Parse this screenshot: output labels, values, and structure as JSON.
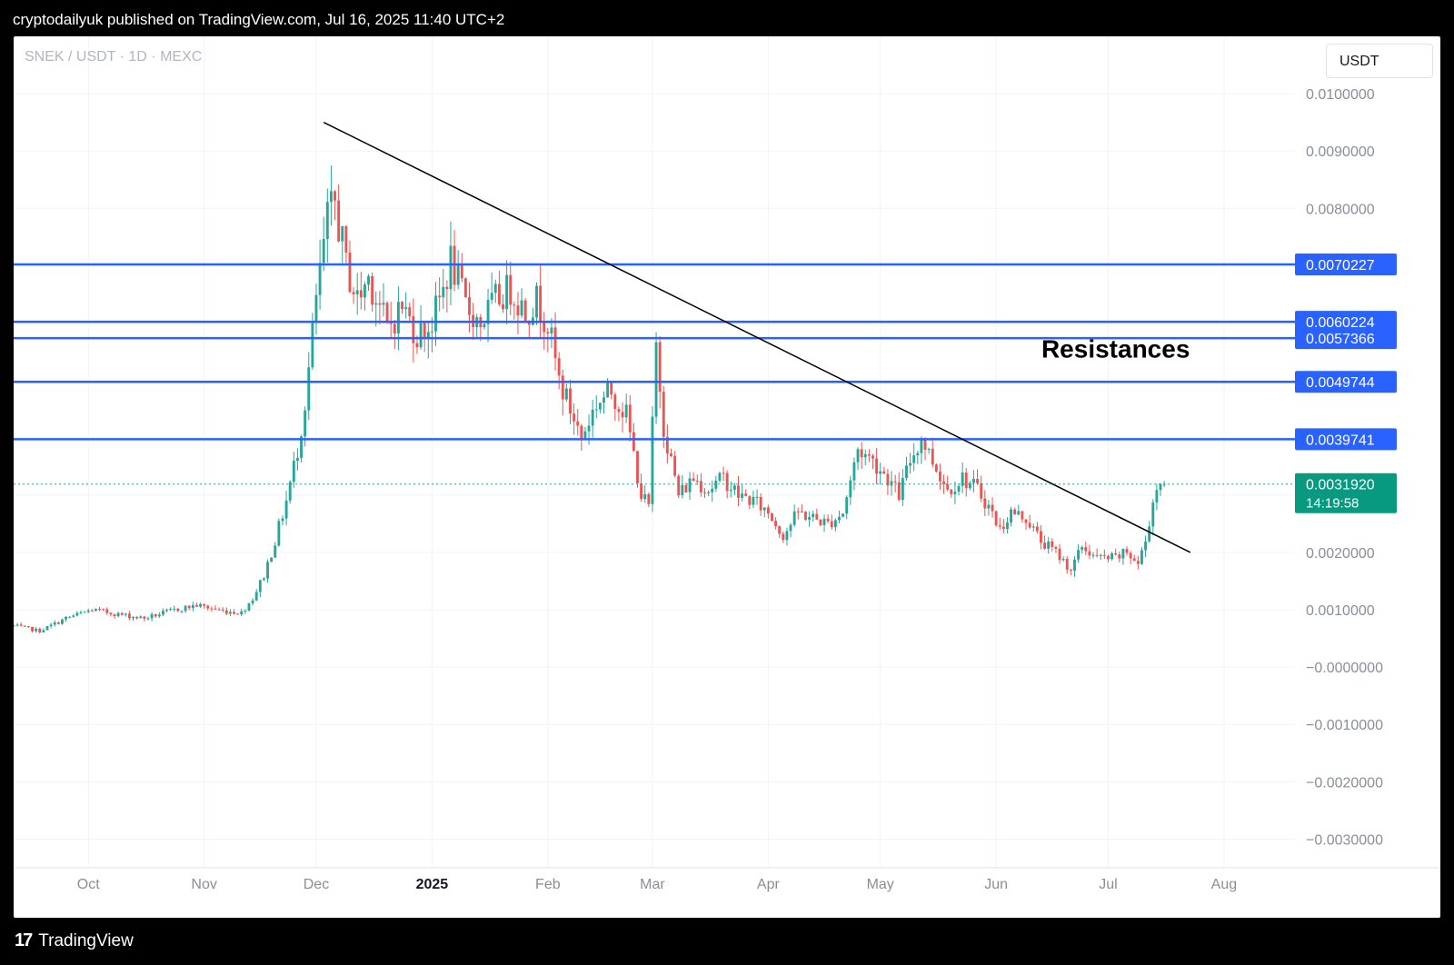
{
  "header": {
    "published_text": "cryptodailyuk published on TradingView.com, Jul 16, 2025 11:40 UTC+2"
  },
  "chart_header": {
    "symbol": "SNEK / USDT · 1D · MEXC",
    "currency": "USDT"
  },
  "footer": {
    "brand": "TradingView",
    "logo_glyph": "17"
  },
  "colors": {
    "up": "#26a69a",
    "down": "#ef5350",
    "level_line": "#2962ff",
    "trendline": "#000000",
    "grid": "#f0f3fa",
    "axis_text": "#b2b5be",
    "last_price_bg": "#089981"
  },
  "chart_data": {
    "type": "candlestick",
    "title": "",
    "xlabel": "",
    "ylabel": "",
    "ylim": [
      -0.0035,
      0.011
    ],
    "y_ticks": [
      {
        "value": 0.01,
        "label": "0.0100000"
      },
      {
        "value": 0.009,
        "label": "0.0090000"
      },
      {
        "value": 0.008,
        "label": "0.0080000"
      },
      {
        "value": 0.002,
        "label": "0.0020000"
      },
      {
        "value": 0.001,
        "label": "0.0010000"
      },
      {
        "value": 0.0,
        "label": "−0.0000000"
      },
      {
        "value": -0.001,
        "label": "−0.0010000"
      },
      {
        "value": -0.002,
        "label": "−0.0020000"
      },
      {
        "value": -0.003,
        "label": "−0.0030000"
      }
    ],
    "x_ticks": [
      {
        "date": "2024-10-01",
        "label": "Oct",
        "bold": false
      },
      {
        "date": "2024-11-01",
        "label": "Nov",
        "bold": false
      },
      {
        "date": "2024-12-01",
        "label": "Dec",
        "bold": false
      },
      {
        "date": "2025-01-01",
        "label": "2025",
        "bold": true
      },
      {
        "date": "2025-02-01",
        "label": "Feb",
        "bold": false
      },
      {
        "date": "2025-03-01",
        "label": "Mar",
        "bold": false
      },
      {
        "date": "2025-04-01",
        "label": "Apr",
        "bold": false
      },
      {
        "date": "2025-05-01",
        "label": "May",
        "bold": false
      },
      {
        "date": "2025-06-01",
        "label": "Jun",
        "bold": false
      },
      {
        "date": "2025-07-01",
        "label": "Jul",
        "bold": false
      },
      {
        "date": "2025-08-01",
        "label": "Aug",
        "bold": false
      }
    ],
    "x_range": [
      "2024-09-11",
      "2025-08-20"
    ],
    "grid": true,
    "price_path": [
      [
        "2024-09-11",
        0.00072
      ],
      [
        "2024-09-18",
        0.00063
      ],
      [
        "2024-09-25",
        0.00085
      ],
      [
        "2024-10-02",
        0.001
      ],
      [
        "2024-10-09",
        0.00092
      ],
      [
        "2024-10-16",
        0.00085
      ],
      [
        "2024-10-23",
        0.00098
      ],
      [
        "2024-10-30",
        0.00108
      ],
      [
        "2024-11-06",
        0.00098
      ],
      [
        "2024-11-11",
        0.00095
      ],
      [
        "2024-11-14",
        0.0012
      ],
      [
        "2024-11-17",
        0.0016
      ],
      [
        "2024-11-20",
        0.0022
      ],
      [
        "2024-11-23",
        0.0029
      ],
      [
        "2024-11-26",
        0.0038
      ],
      [
        "2024-11-28",
        0.0046
      ],
      [
        "2024-12-01",
        0.0064
      ],
      [
        "2024-12-04",
        0.0078
      ],
      [
        "2024-12-06",
        0.0081
      ],
      [
        "2024-12-09",
        0.007
      ],
      [
        "2024-12-12",
        0.0064
      ],
      [
        "2024-12-15",
        0.0068
      ],
      [
        "2024-12-18",
        0.0063
      ],
      [
        "2024-12-20",
        0.0059
      ],
      [
        "2024-12-24",
        0.0063
      ],
      [
        "2024-12-28",
        0.0058
      ],
      [
        "2025-01-01",
        0.006
      ],
      [
        "2025-01-04",
        0.0066
      ],
      [
        "2025-01-06",
        0.0071
      ],
      [
        "2025-01-10",
        0.0063
      ],
      [
        "2025-01-14",
        0.006
      ],
      [
        "2025-01-18",
        0.0064
      ],
      [
        "2025-01-22",
        0.0066
      ],
      [
        "2025-01-26",
        0.0062
      ],
      [
        "2025-01-29",
        0.0064
      ],
      [
        "2025-02-01",
        0.006
      ],
      [
        "2025-02-04",
        0.005
      ],
      [
        "2025-02-07",
        0.0045
      ],
      [
        "2025-02-10",
        0.004
      ],
      [
        "2025-02-14",
        0.0046
      ],
      [
        "2025-02-18",
        0.0048
      ],
      [
        "2025-02-22",
        0.0044
      ],
      [
        "2025-02-26",
        0.003
      ],
      [
        "2025-02-28",
        0.0028
      ],
      [
        "2025-03-02",
        0.0056
      ],
      [
        "2025-03-04",
        0.0042
      ],
      [
        "2025-03-08",
        0.003
      ],
      [
        "2025-03-12",
        0.0033
      ],
      [
        "2025-03-16",
        0.0031
      ],
      [
        "2025-03-20",
        0.0033
      ],
      [
        "2025-03-24",
        0.003
      ],
      [
        "2025-03-28",
        0.0029
      ],
      [
        "2025-04-01",
        0.0027
      ],
      [
        "2025-04-05",
        0.0023
      ],
      [
        "2025-04-09",
        0.0027
      ],
      [
        "2025-04-13",
        0.0026
      ],
      [
        "2025-04-17",
        0.0025
      ],
      [
        "2025-04-21",
        0.0027
      ],
      [
        "2025-04-25",
        0.0038
      ],
      [
        "2025-04-29",
        0.0036
      ],
      [
        "2025-05-03",
        0.0033
      ],
      [
        "2025-05-06",
        0.003
      ],
      [
        "2025-05-09",
        0.0036
      ],
      [
        "2025-05-12",
        0.004
      ],
      [
        "2025-05-15",
        0.0036
      ],
      [
        "2025-05-19",
        0.0031
      ],
      [
        "2025-05-23",
        0.0033
      ],
      [
        "2025-05-27",
        0.0031
      ],
      [
        "2025-05-30",
        0.0028
      ],
      [
        "2025-06-02",
        0.0024
      ],
      [
        "2025-06-05",
        0.0027
      ],
      [
        "2025-06-09",
        0.0026
      ],
      [
        "2025-06-13",
        0.0022
      ],
      [
        "2025-06-17",
        0.002
      ],
      [
        "2025-06-21",
        0.0017
      ],
      [
        "2025-06-24",
        0.0021
      ],
      [
        "2025-06-28",
        0.0019
      ],
      [
        "2025-07-03",
        0.0019
      ],
      [
        "2025-07-06",
        0.002
      ],
      [
        "2025-07-09",
        0.0018
      ],
      [
        "2025-07-11",
        0.0022
      ],
      [
        "2025-07-13",
        0.0029
      ],
      [
        "2025-07-15",
        0.0033
      ],
      [
        "2025-07-16",
        0.003192
      ]
    ],
    "horizontal_levels": [
      {
        "value": 0.0070227,
        "label": "0.0070227"
      },
      {
        "value": 0.0060224,
        "label": "0.0060224"
      },
      {
        "value": 0.0057366,
        "label": "0.0057366"
      },
      {
        "value": 0.0049744,
        "label": "0.0049744"
      },
      {
        "value": 0.0039741,
        "label": "0.0039741"
      }
    ],
    "trendline": {
      "start": {
        "date": "2024-12-03",
        "value": 0.0095
      },
      "end": {
        "date": "2025-07-23",
        "value": 0.002
      }
    },
    "annotation": {
      "text": "Resistances",
      "date": "2025-07-03",
      "value": 0.0054
    },
    "last_price": {
      "value": 0.003192,
      "label": "0.0031920",
      "countdown": "14:19:58"
    }
  }
}
